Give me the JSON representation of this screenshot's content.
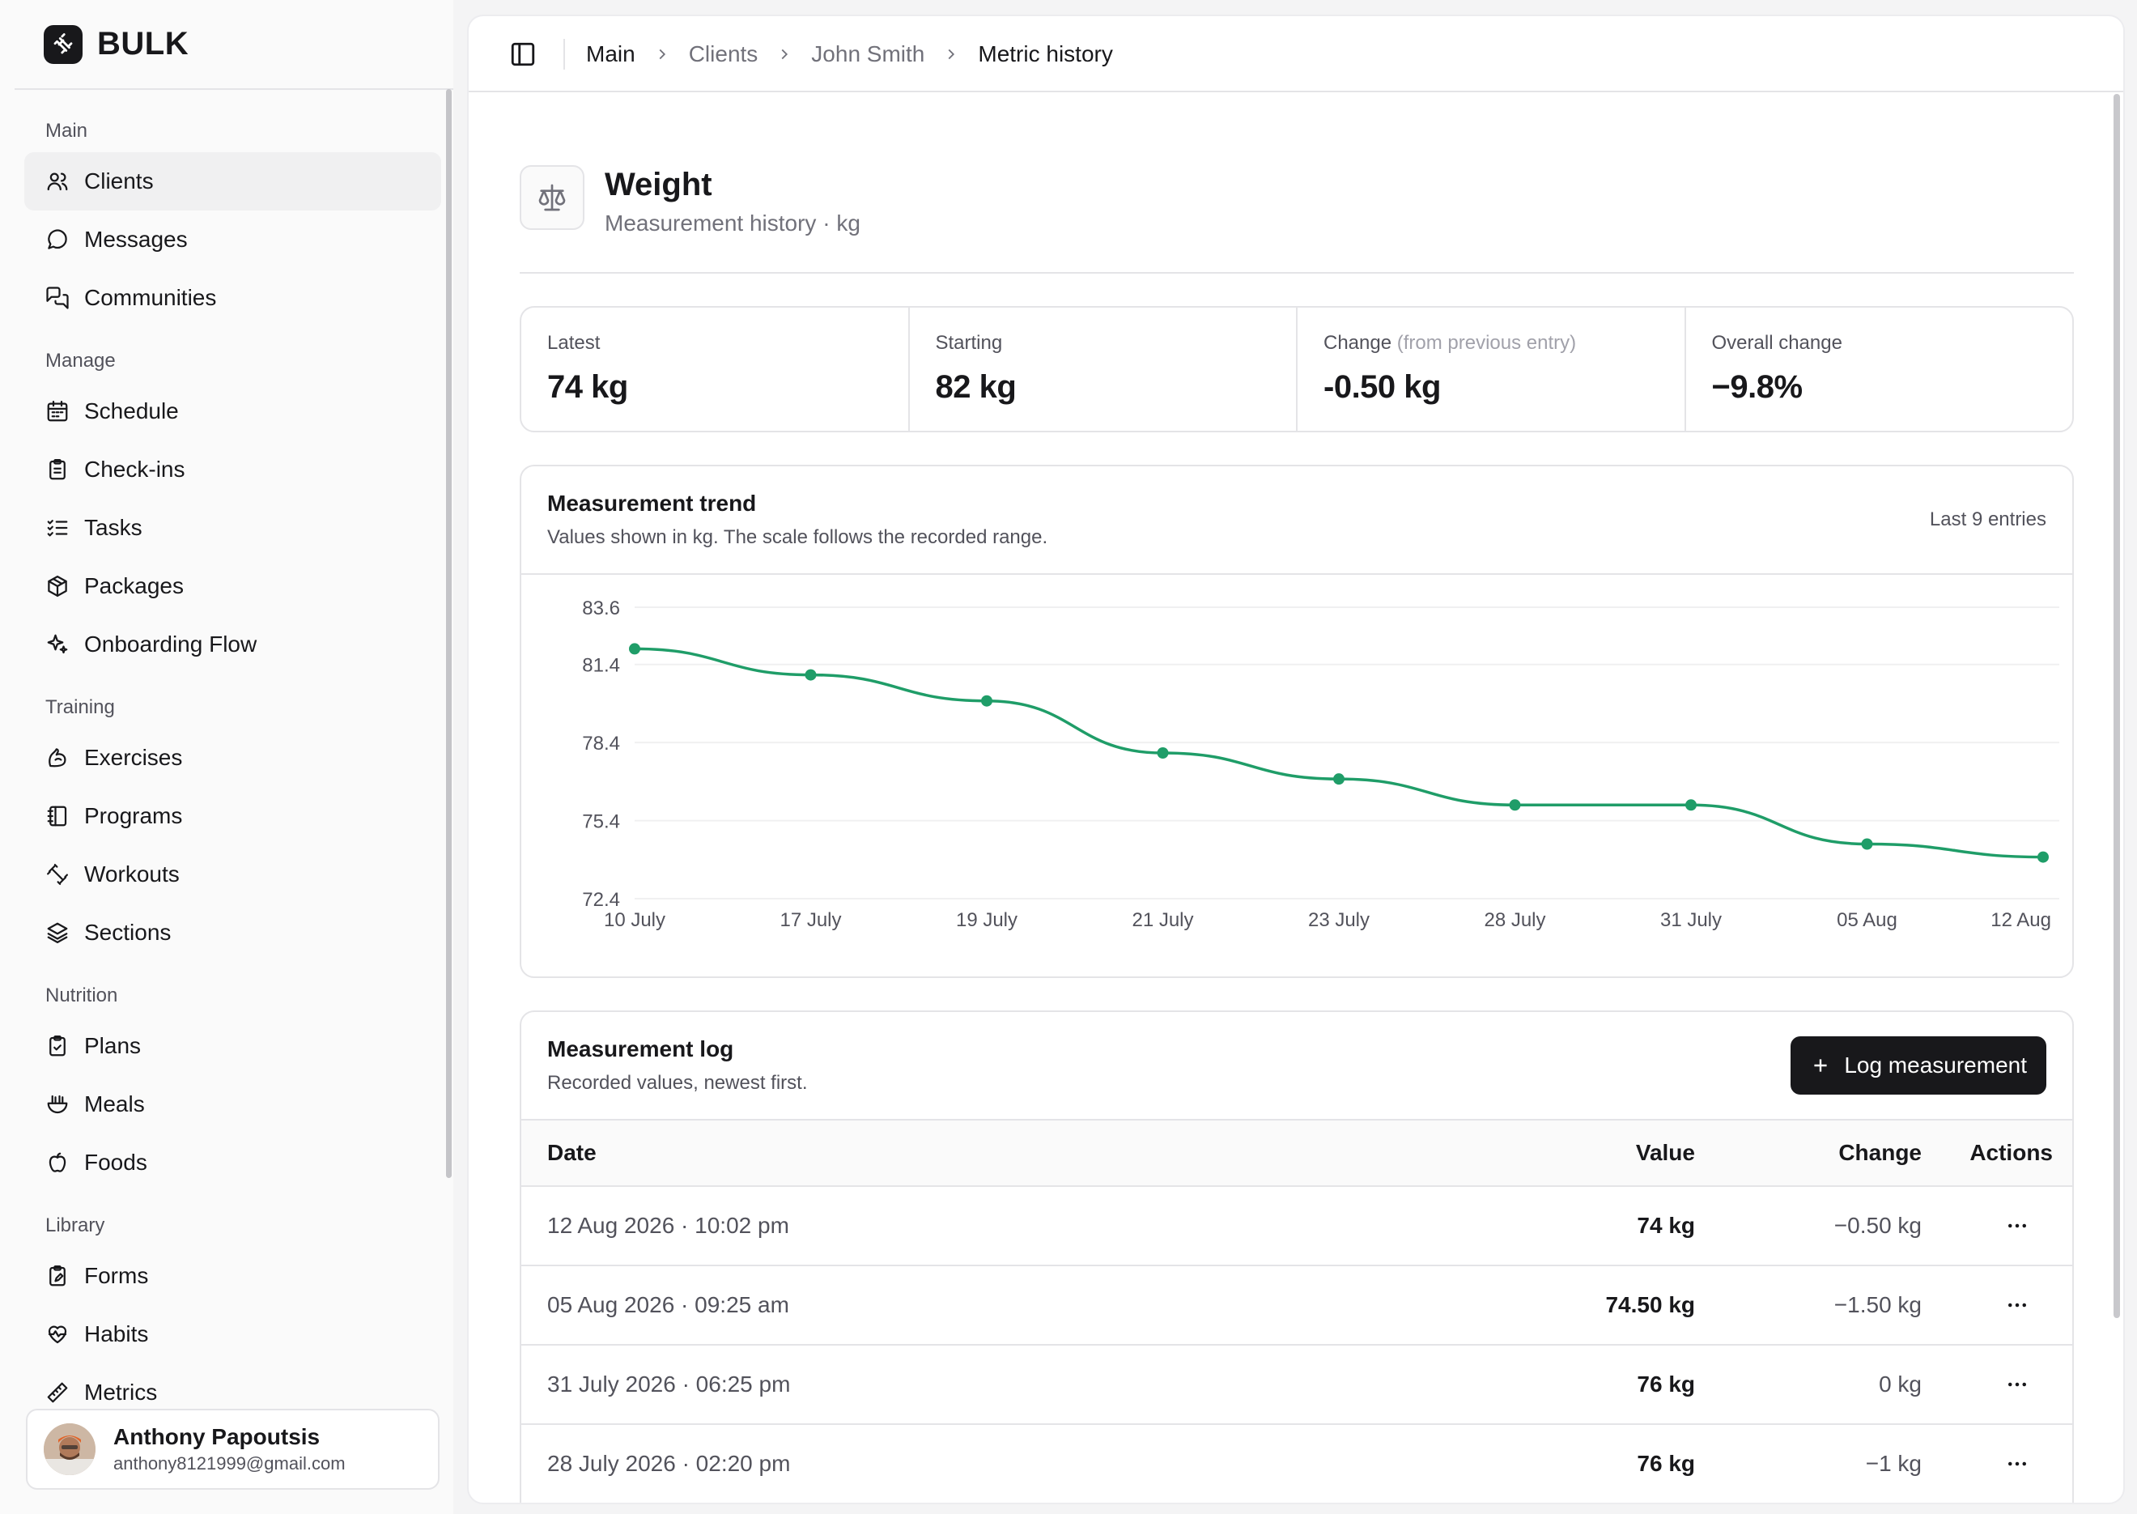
{
  "brand": {
    "name": "BULK"
  },
  "sidebar": {
    "sections": [
      {
        "heading": "Main",
        "items": [
          {
            "label": "Clients",
            "icon": "users-icon",
            "active": true
          },
          {
            "label": "Messages",
            "icon": "message-circle-icon"
          },
          {
            "label": "Communities",
            "icon": "messages-square-icon"
          }
        ]
      },
      {
        "heading": "Manage",
        "items": [
          {
            "label": "Schedule",
            "icon": "calendar-icon"
          },
          {
            "label": "Check-ins",
            "icon": "clipboard-list-icon"
          },
          {
            "label": "Tasks",
            "icon": "list-checks-icon"
          },
          {
            "label": "Packages",
            "icon": "package-icon"
          },
          {
            "label": "Onboarding Flow",
            "icon": "sparkles-icon"
          }
        ]
      },
      {
        "heading": "Training",
        "items": [
          {
            "label": "Exercises",
            "icon": "biceps-icon"
          },
          {
            "label": "Programs",
            "icon": "notebook-icon"
          },
          {
            "label": "Workouts",
            "icon": "dumbbell-icon"
          },
          {
            "label": "Sections",
            "icon": "layers-icon"
          }
        ]
      },
      {
        "heading": "Nutrition",
        "items": [
          {
            "label": "Plans",
            "icon": "clipboard-check-icon"
          },
          {
            "label": "Meals",
            "icon": "bowl-icon"
          },
          {
            "label": "Foods",
            "icon": "apple-icon"
          }
        ]
      },
      {
        "heading": "Library",
        "items": [
          {
            "label": "Forms",
            "icon": "clipboard-pen-icon"
          },
          {
            "label": "Habits",
            "icon": "heart-pulse-icon"
          },
          {
            "label": "Metrics",
            "icon": "ruler-icon"
          }
        ]
      }
    ]
  },
  "user": {
    "name": "Anthony Papoutsis",
    "email": "anthony8121999@gmail.com"
  },
  "breadcrumb": [
    "Main",
    "Clients",
    "John Smith",
    "Metric history"
  ],
  "page": {
    "title": "Weight",
    "subtitle": "Measurement history · kg"
  },
  "stats": [
    {
      "label": "Latest",
      "label_note": "",
      "value": "74 kg"
    },
    {
      "label": "Starting",
      "label_note": "",
      "value": "82 kg"
    },
    {
      "label": "Change",
      "label_note": "(from previous entry)",
      "value": "-0.50 kg"
    },
    {
      "label": "Overall change",
      "label_note": "",
      "value": "−9.8%"
    }
  ],
  "trend": {
    "title": "Measurement trend",
    "subtitle": "Values shown in kg. The scale follows the recorded range.",
    "meta": "Last 9 entries"
  },
  "chart_data": {
    "type": "line",
    "categories": [
      "10 July",
      "17 July",
      "19 July",
      "21 July",
      "23 July",
      "28 July",
      "31 July",
      "05 Aug",
      "12 Aug"
    ],
    "values": [
      82,
      81,
      80,
      78,
      77,
      76,
      76,
      74.5,
      74
    ],
    "yticks": [
      72.4,
      75.4,
      78.4,
      81.4,
      83.6
    ],
    "ylim": [
      72.4,
      83.6
    ],
    "grid": true,
    "color": "#1f9d68"
  },
  "log": {
    "title": "Measurement log",
    "subtitle": "Recorded values, newest first.",
    "button_label": "Log measurement",
    "columns": {
      "date": "Date",
      "value": "Value",
      "change": "Change",
      "actions": "Actions"
    },
    "rows": [
      {
        "date": "12 Aug 2026 · 10:02 pm",
        "value": "74 kg",
        "change": "−0.50 kg"
      },
      {
        "date": "05 Aug 2026 · 09:25 am",
        "value": "74.50 kg",
        "change": "−1.50 kg"
      },
      {
        "date": "31 July 2026 · 06:25 pm",
        "value": "76 kg",
        "change": "0 kg"
      },
      {
        "date": "28 July 2026 · 02:20 pm",
        "value": "76 kg",
        "change": "−1 kg"
      }
    ]
  }
}
